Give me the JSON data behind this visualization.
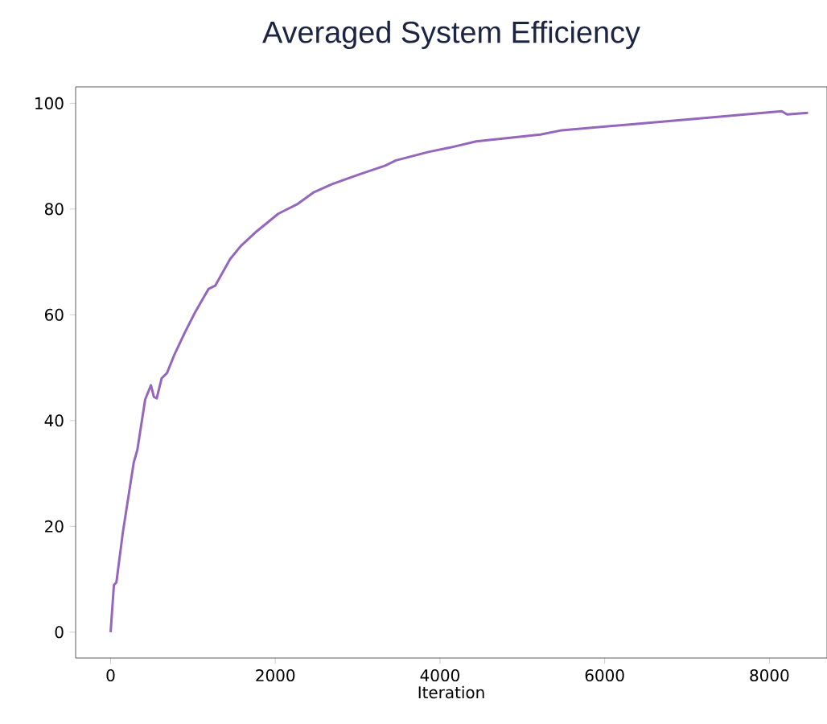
{
  "chart_data": {
    "type": "line",
    "title": "Averaged System Efficiency",
    "xlabel": "Iteration",
    "xlim": [
      -425,
      8700
    ],
    "ylim": [
      -4.9,
      103.1
    ],
    "xticks": [
      0,
      2000,
      4000,
      6000,
      8000
    ],
    "yticks": [
      0,
      20,
      40,
      60,
      80,
      100
    ],
    "series": [
      {
        "color": "#9467bd",
        "line_style": "solid",
        "marker": "none",
        "x": [
          0,
          40,
          70,
          150,
          280,
          325,
          420,
          490,
          525,
          560,
          620,
          685,
          770,
          900,
          1030,
          1190,
          1270,
          1450,
          1580,
          1775,
          2035,
          2265,
          2460,
          2690,
          3010,
          3335,
          3465,
          3860,
          4115,
          4440,
          5220,
          5480,
          6390,
          7430,
          8150,
          8215,
          8470
        ],
        "values": [
          0,
          8.9,
          9.4,
          19,
          32,
          34.5,
          44,
          46.7,
          44.5,
          44.2,
          48,
          49,
          52.3,
          56.6,
          60.6,
          64.9,
          65.5,
          70.5,
          73,
          75.8,
          79.1,
          80.9,
          83.1,
          84.7,
          86.5,
          88.2,
          89.2,
          90.8,
          91.6,
          92.8,
          94.1,
          94.9,
          96.1,
          97.5,
          98.5,
          97.9,
          98.2
        ]
      }
    ]
  }
}
